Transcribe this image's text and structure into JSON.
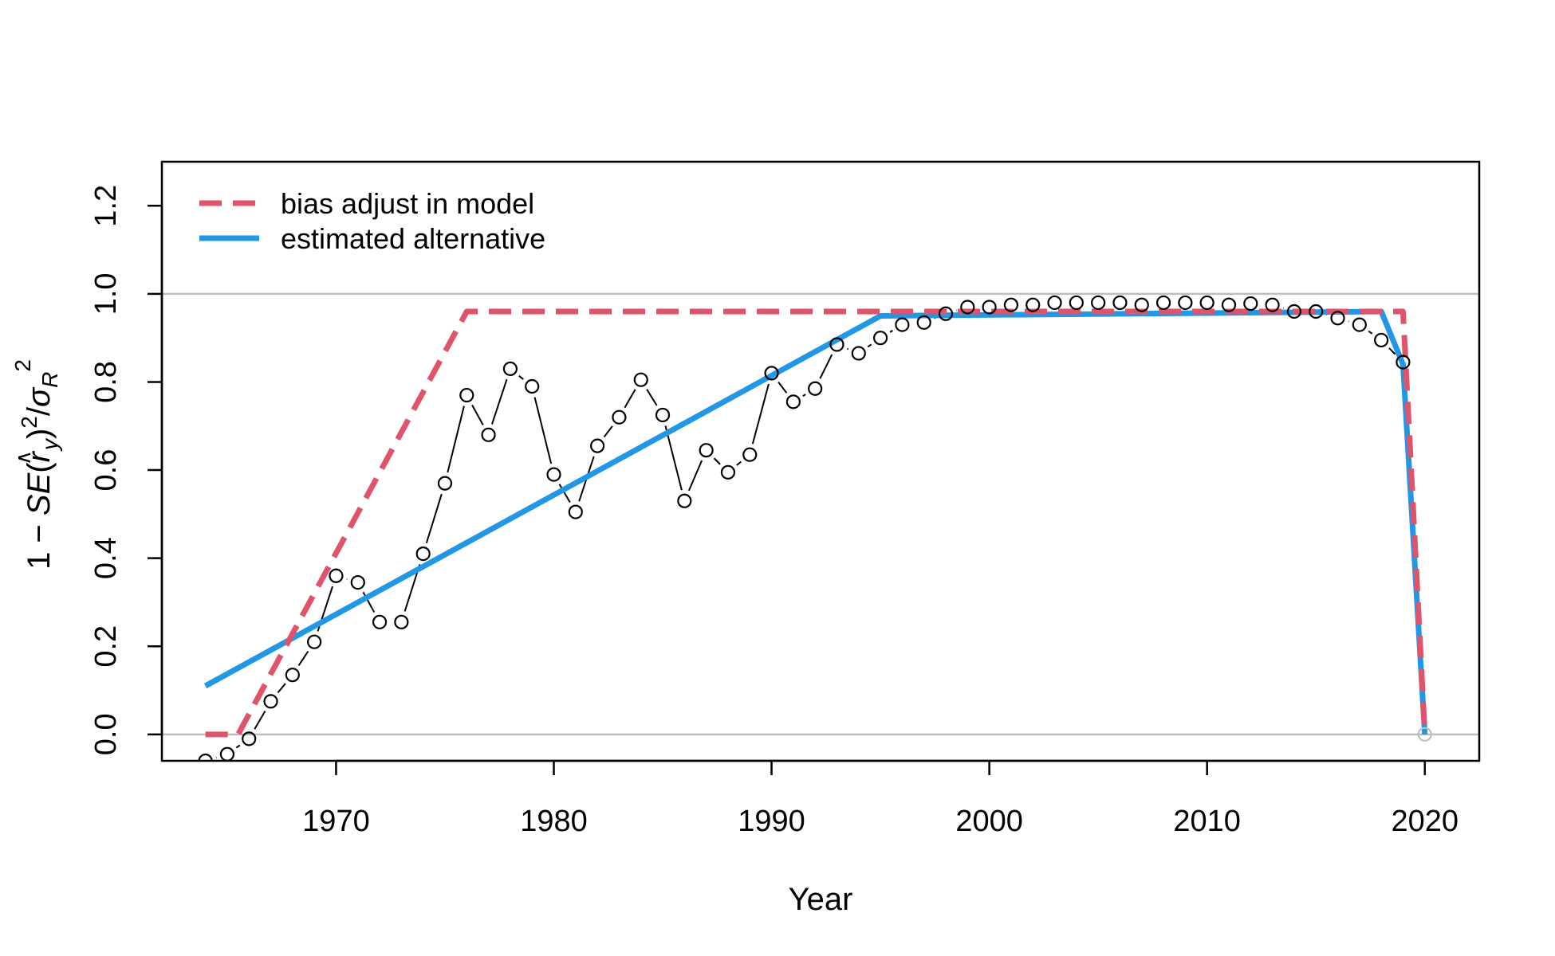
{
  "chart_data": {
    "type": "line",
    "title": "",
    "xlabel": "Year",
    "ylabel": "1 − SE(r̂_y)² / σ_R²",
    "xlim": [
      1962,
      2022.5
    ],
    "ylim": [
      -0.06,
      1.3
    ],
    "xticks": [
      1970,
      1980,
      1990,
      2000,
      2010,
      2020
    ],
    "yticks": [
      0.0,
      0.2,
      0.4,
      0.6,
      0.8,
      1.0,
      1.2
    ],
    "reference_lines_y": [
      0.0,
      1.0
    ],
    "grid": false,
    "legend": {
      "position": "top-left",
      "entries": [
        "bias adjust in model",
        "estimated alternative"
      ]
    },
    "series": [
      {
        "name": "points",
        "style": "open-circles-connected",
        "color": "#000000",
        "x": [
          1964,
          1965,
          1966,
          1967,
          1968,
          1969,
          1970,
          1971,
          1972,
          1973,
          1974,
          1975,
          1976,
          1977,
          1978,
          1979,
          1980,
          1981,
          1982,
          1983,
          1984,
          1985,
          1986,
          1987,
          1988,
          1989,
          1990,
          1991,
          1992,
          1993,
          1994,
          1995,
          1996,
          1997,
          1998,
          1999,
          2000,
          2001,
          2002,
          2003,
          2004,
          2005,
          2006,
          2007,
          2008,
          2009,
          2010,
          2011,
          2012,
          2013,
          2014,
          2015,
          2016,
          2017,
          2018,
          2019,
          2020
        ],
        "y": [
          -0.06,
          -0.045,
          -0.01,
          0.075,
          0.135,
          0.21,
          0.36,
          0.345,
          0.255,
          0.255,
          0.41,
          0.57,
          0.77,
          0.68,
          0.83,
          0.79,
          0.59,
          0.505,
          0.655,
          0.72,
          0.805,
          0.725,
          0.53,
          0.645,
          0.595,
          0.635,
          0.82,
          0.755,
          0.785,
          0.885,
          0.865,
          0.9,
          0.93,
          0.935,
          0.955,
          0.97,
          0.97,
          0.975,
          0.975,
          0.98,
          0.98,
          0.98,
          0.98,
          0.975,
          0.98,
          0.98,
          0.98,
          0.975,
          0.978,
          0.975,
          0.96,
          0.96,
          0.945,
          0.93,
          0.895,
          0.845,
          0.0
        ]
      },
      {
        "name": "bias adjust in model",
        "style": "dashed",
        "color": "#DF536B",
        "x": [
          1964,
          1965.5,
          1976,
          2019,
          2020
        ],
        "y": [
          0.0,
          0.0,
          0.96,
          0.96,
          0.0
        ]
      },
      {
        "name": "estimated alternative",
        "style": "solid",
        "color": "#2297E6",
        "x": [
          1964,
          1995,
          2018,
          2019,
          2020
        ],
        "y": [
          0.11,
          0.95,
          0.96,
          0.84,
          0.0
        ]
      }
    ]
  }
}
